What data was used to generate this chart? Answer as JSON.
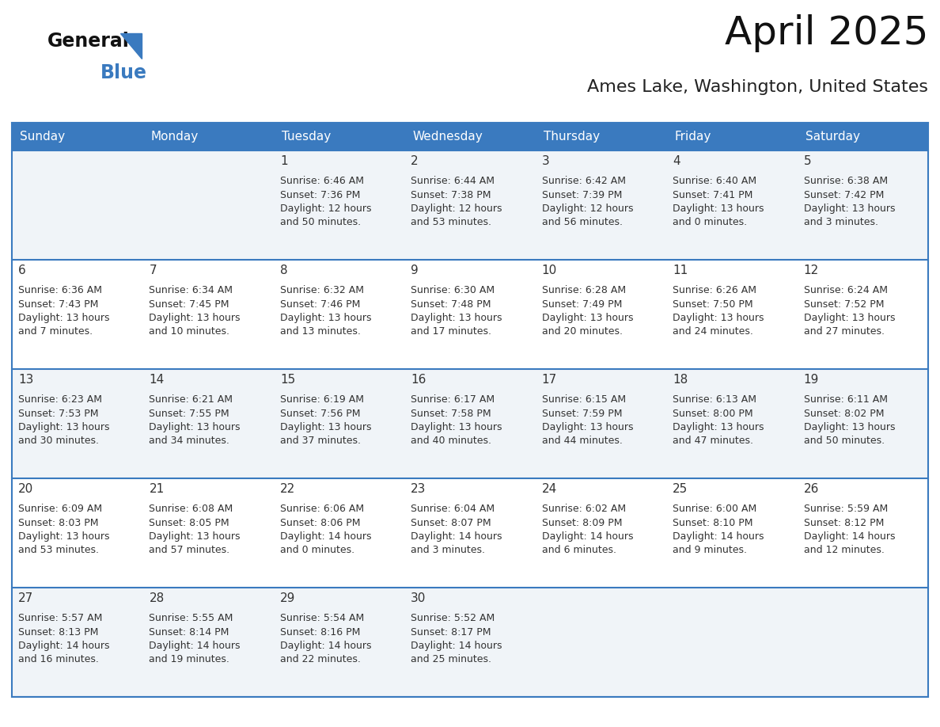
{
  "title": "April 2025",
  "subtitle": "Ames Lake, Washington, United States",
  "header_color": "#3a7abf",
  "header_text_color": "#ffffff",
  "cell_bg_even": "#f0f4f8",
  "cell_bg_odd": "#ffffff",
  "border_color": "#3a7abf",
  "text_color": "#333333",
  "day_headers": [
    "Sunday",
    "Monday",
    "Tuesday",
    "Wednesday",
    "Thursday",
    "Friday",
    "Saturday"
  ],
  "background_color": "#ffffff",
  "logo_general_color": "#111111",
  "logo_blue_color": "#3a7abf",
  "logo_triangle_color": "#3a7abf",
  "title_fontsize": 36,
  "subtitle_fontsize": 16,
  "header_fontsize": 11,
  "date_fontsize": 11,
  "info_fontsize": 9,
  "days": [
    {
      "date": 1,
      "col": 2,
      "row": 0,
      "sunrise": "6:46 AM",
      "sunset": "7:36 PM",
      "daylight_h": "12 hours",
      "daylight_m": "50 minutes."
    },
    {
      "date": 2,
      "col": 3,
      "row": 0,
      "sunrise": "6:44 AM",
      "sunset": "7:38 PM",
      "daylight_h": "12 hours",
      "daylight_m": "53 minutes."
    },
    {
      "date": 3,
      "col": 4,
      "row": 0,
      "sunrise": "6:42 AM",
      "sunset": "7:39 PM",
      "daylight_h": "12 hours",
      "daylight_m": "56 minutes."
    },
    {
      "date": 4,
      "col": 5,
      "row": 0,
      "sunrise": "6:40 AM",
      "sunset": "7:41 PM",
      "daylight_h": "13 hours",
      "daylight_m": "0 minutes."
    },
    {
      "date": 5,
      "col": 6,
      "row": 0,
      "sunrise": "6:38 AM",
      "sunset": "7:42 PM",
      "daylight_h": "13 hours",
      "daylight_m": "3 minutes."
    },
    {
      "date": 6,
      "col": 0,
      "row": 1,
      "sunrise": "6:36 AM",
      "sunset": "7:43 PM",
      "daylight_h": "13 hours",
      "daylight_m": "7 minutes."
    },
    {
      "date": 7,
      "col": 1,
      "row": 1,
      "sunrise": "6:34 AM",
      "sunset": "7:45 PM",
      "daylight_h": "13 hours",
      "daylight_m": "10 minutes."
    },
    {
      "date": 8,
      "col": 2,
      "row": 1,
      "sunrise": "6:32 AM",
      "sunset": "7:46 PM",
      "daylight_h": "13 hours",
      "daylight_m": "13 minutes."
    },
    {
      "date": 9,
      "col": 3,
      "row": 1,
      "sunrise": "6:30 AM",
      "sunset": "7:48 PM",
      "daylight_h": "13 hours",
      "daylight_m": "17 minutes."
    },
    {
      "date": 10,
      "col": 4,
      "row": 1,
      "sunrise": "6:28 AM",
      "sunset": "7:49 PM",
      "daylight_h": "13 hours",
      "daylight_m": "20 minutes."
    },
    {
      "date": 11,
      "col": 5,
      "row": 1,
      "sunrise": "6:26 AM",
      "sunset": "7:50 PM",
      "daylight_h": "13 hours",
      "daylight_m": "24 minutes."
    },
    {
      "date": 12,
      "col": 6,
      "row": 1,
      "sunrise": "6:24 AM",
      "sunset": "7:52 PM",
      "daylight_h": "13 hours",
      "daylight_m": "27 minutes."
    },
    {
      "date": 13,
      "col": 0,
      "row": 2,
      "sunrise": "6:23 AM",
      "sunset": "7:53 PM",
      "daylight_h": "13 hours",
      "daylight_m": "30 minutes."
    },
    {
      "date": 14,
      "col": 1,
      "row": 2,
      "sunrise": "6:21 AM",
      "sunset": "7:55 PM",
      "daylight_h": "13 hours",
      "daylight_m": "34 minutes."
    },
    {
      "date": 15,
      "col": 2,
      "row": 2,
      "sunrise": "6:19 AM",
      "sunset": "7:56 PM",
      "daylight_h": "13 hours",
      "daylight_m": "37 minutes."
    },
    {
      "date": 16,
      "col": 3,
      "row": 2,
      "sunrise": "6:17 AM",
      "sunset": "7:58 PM",
      "daylight_h": "13 hours",
      "daylight_m": "40 minutes."
    },
    {
      "date": 17,
      "col": 4,
      "row": 2,
      "sunrise": "6:15 AM",
      "sunset": "7:59 PM",
      "daylight_h": "13 hours",
      "daylight_m": "44 minutes."
    },
    {
      "date": 18,
      "col": 5,
      "row": 2,
      "sunrise": "6:13 AM",
      "sunset": "8:00 PM",
      "daylight_h": "13 hours",
      "daylight_m": "47 minutes."
    },
    {
      "date": 19,
      "col": 6,
      "row": 2,
      "sunrise": "6:11 AM",
      "sunset": "8:02 PM",
      "daylight_h": "13 hours",
      "daylight_m": "50 minutes."
    },
    {
      "date": 20,
      "col": 0,
      "row": 3,
      "sunrise": "6:09 AM",
      "sunset": "8:03 PM",
      "daylight_h": "13 hours",
      "daylight_m": "53 minutes."
    },
    {
      "date": 21,
      "col": 1,
      "row": 3,
      "sunrise": "6:08 AM",
      "sunset": "8:05 PM",
      "daylight_h": "13 hours",
      "daylight_m": "57 minutes."
    },
    {
      "date": 22,
      "col": 2,
      "row": 3,
      "sunrise": "6:06 AM",
      "sunset": "8:06 PM",
      "daylight_h": "14 hours",
      "daylight_m": "0 minutes."
    },
    {
      "date": 23,
      "col": 3,
      "row": 3,
      "sunrise": "6:04 AM",
      "sunset": "8:07 PM",
      "daylight_h": "14 hours",
      "daylight_m": "3 minutes."
    },
    {
      "date": 24,
      "col": 4,
      "row": 3,
      "sunrise": "6:02 AM",
      "sunset": "8:09 PM",
      "daylight_h": "14 hours",
      "daylight_m": "6 minutes."
    },
    {
      "date": 25,
      "col": 5,
      "row": 3,
      "sunrise": "6:00 AM",
      "sunset": "8:10 PM",
      "daylight_h": "14 hours",
      "daylight_m": "9 minutes."
    },
    {
      "date": 26,
      "col": 6,
      "row": 3,
      "sunrise": "5:59 AM",
      "sunset": "8:12 PM",
      "daylight_h": "14 hours",
      "daylight_m": "12 minutes."
    },
    {
      "date": 27,
      "col": 0,
      "row": 4,
      "sunrise": "5:57 AM",
      "sunset": "8:13 PM",
      "daylight_h": "14 hours",
      "daylight_m": "16 minutes."
    },
    {
      "date": 28,
      "col": 1,
      "row": 4,
      "sunrise": "5:55 AM",
      "sunset": "8:14 PM",
      "daylight_h": "14 hours",
      "daylight_m": "19 minutes."
    },
    {
      "date": 29,
      "col": 2,
      "row": 4,
      "sunrise": "5:54 AM",
      "sunset": "8:16 PM",
      "daylight_h": "14 hours",
      "daylight_m": "22 minutes."
    },
    {
      "date": 30,
      "col": 3,
      "row": 4,
      "sunrise": "5:52 AM",
      "sunset": "8:17 PM",
      "daylight_h": "14 hours",
      "daylight_m": "25 minutes."
    }
  ]
}
